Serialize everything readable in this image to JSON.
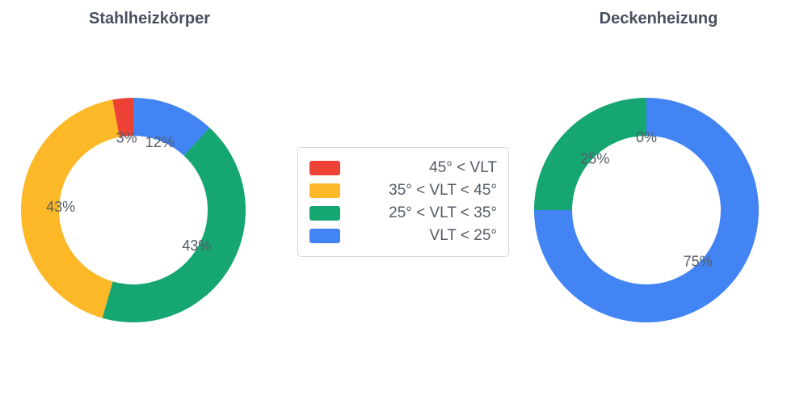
{
  "figure": {
    "background_color": "#ffffff",
    "text_color": "#545c66",
    "title_color": "#47505f"
  },
  "chart_data": [
    {
      "type": "pie",
      "subtype": "donut",
      "title": "Stahlheizkörper",
      "labels": [
        "45° < VLT",
        "35° < VLT < 45°",
        "25° < VLT < 35°",
        "VLT < 25°"
      ],
      "values": [
        3,
        43,
        43,
        12
      ],
      "data_labels": [
        "3%",
        "43%",
        "43%",
        "12%"
      ],
      "colors": [
        "#ee4135",
        "#fcb826",
        "#16a672",
        "#4284f3"
      ],
      "hole": 0.66,
      "direction": "counterclockwise",
      "start_angle_deg": 0,
      "unit": "%"
    },
    {
      "type": "pie",
      "subtype": "donut",
      "title": "Deckenheizung",
      "labels": [
        "45° < VLT",
        "35° < VLT < 45°",
        "25° < VLT < 35°",
        "VLT < 25°"
      ],
      "values": [
        0,
        0,
        25,
        75
      ],
      "data_labels": [
        "0%",
        "",
        "25%",
        "75%"
      ],
      "colors": [
        "#ee4135",
        "#fcb826",
        "#16a672",
        "#4284f3"
      ],
      "hole": 0.66,
      "direction": "counterclockwise",
      "start_angle_deg": 0,
      "unit": "%"
    }
  ],
  "legend": {
    "position": "center",
    "items": [
      {
        "label": "45° < VLT",
        "color": "#ee4135"
      },
      {
        "label": "35° < VLT < 45°",
        "color": "#fcb826"
      },
      {
        "label": "25° < VLT < 35°",
        "color": "#16a672"
      },
      {
        "label": "VLT < 25°",
        "color": "#4284f3"
      }
    ]
  }
}
